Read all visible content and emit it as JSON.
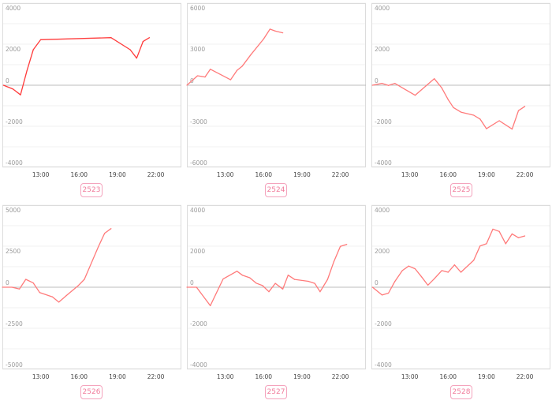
{
  "chart_data": [
    {
      "type": "line",
      "label": "2523",
      "color": "#ff3b3b",
      "ylim": [
        -4000,
        4000
      ],
      "yticks": [
        4000,
        2000,
        0,
        -2000,
        -4000
      ],
      "ygrid_step": 1000,
      "xlim": [
        "10:00",
        "24:00"
      ],
      "xticks": [
        "13:00",
        "16:00",
        "19:00",
        "22:00"
      ],
      "grid": true,
      "x": [
        "10:05",
        "10:50",
        "11:25",
        "11:55",
        "12:25",
        "13:00",
        "18:30",
        "20:00",
        "20:30",
        "21:00",
        "21:30"
      ],
      "values": [
        0,
        -190,
        -470,
        700,
        1730,
        2220,
        2320,
        1730,
        1320,
        2130,
        2320
      ]
    },
    {
      "type": "line",
      "label": "2524",
      "color": "#ff7a7a",
      "ylim": [
        -6000,
        6000
      ],
      "yticks": [
        6000,
        3000,
        0,
        -3000,
        -6000
      ],
      "ygrid_step": 1500,
      "xlim": [
        "10:00",
        "24:00"
      ],
      "xticks": [
        "13:00",
        "16:00",
        "19:00",
        "22:00"
      ],
      "grid": true,
      "x": [
        "10:00",
        "10:50",
        "11:25",
        "11:50",
        "13:25",
        "13:55",
        "14:20",
        "15:00",
        "16:00",
        "16:30",
        "16:55",
        "17:30"
      ],
      "values": [
        0,
        690,
        600,
        1170,
        400,
        1080,
        1400,
        2230,
        3380,
        4100,
        3960,
        3830
      ]
    },
    {
      "type": "line",
      "label": "2525",
      "color": "#ff7a7a",
      "ylim": [
        -4000,
        4000
      ],
      "yticks": [
        4000,
        2000,
        0,
        -2000,
        -4000
      ],
      "ygrid_step": 1000,
      "xlim": [
        "10:00",
        "24:00"
      ],
      "xticks": [
        "13:00",
        "16:00",
        "19:00",
        "22:00"
      ],
      "grid": true,
      "x": [
        "10:05",
        "10:50",
        "11:20",
        "11:50",
        "13:25",
        "14:55",
        "15:30",
        "16:00",
        "16:25",
        "17:00",
        "18:00",
        "18:30",
        "19:00",
        "20:00",
        "21:00",
        "21:30",
        "22:00"
      ],
      "values": [
        0,
        90,
        -10,
        90,
        -490,
        320,
        -130,
        -700,
        -1090,
        -1310,
        -1460,
        -1650,
        -2120,
        -1730,
        -2140,
        -1240,
        -1030
      ]
    },
    {
      "type": "line",
      "label": "2526",
      "color": "#ff7a7a",
      "ylim": [
        -5000,
        5000
      ],
      "yticks": [
        5000,
        2500,
        0,
        -2500,
        -5000
      ],
      "ygrid_step": 1250,
      "xlim": [
        "10:00",
        "24:00"
      ],
      "xticks": [
        "13:00",
        "16:00",
        "19:00",
        "22:00"
      ],
      "grid": true,
      "x": [
        "10:00",
        "10:45",
        "11:20",
        "11:50",
        "12:25",
        "12:55",
        "13:55",
        "14:25",
        "15:00",
        "15:55",
        "16:25",
        "17:30",
        "18:00",
        "18:30"
      ],
      "values": [
        0,
        0,
        -110,
        480,
        260,
        -320,
        -590,
        -910,
        -510,
        80,
        480,
        2450,
        3290,
        3570
      ]
    },
    {
      "type": "line",
      "label": "2527",
      "color": "#ff7a7a",
      "ylim": [
        -4000,
        4000
      ],
      "yticks": [
        4000,
        2000,
        0,
        -2000,
        -4000
      ],
      "ygrid_step": 1000,
      "xlim": [
        "10:00",
        "24:00"
      ],
      "xticks": [
        "13:00",
        "16:00",
        "19:00",
        "22:00"
      ],
      "grid": true,
      "x": [
        "10:00",
        "10:45",
        "11:50",
        "12:50",
        "13:55",
        "14:20",
        "14:55",
        "15:25",
        "15:55",
        "16:25",
        "16:55",
        "17:30",
        "17:55",
        "18:25",
        "19:30",
        "20:00",
        "20:25",
        "21:00",
        "21:30",
        "22:00",
        "22:30"
      ],
      "values": [
        0,
        0,
        -900,
        400,
        780,
        590,
        460,
        200,
        80,
        -220,
        190,
        -90,
        590,
        380,
        290,
        190,
        -220,
        380,
        1260,
        1990,
        2090
      ]
    },
    {
      "type": "line",
      "label": "2528",
      "color": "#ff7a7a",
      "ylim": [
        -4000,
        4000
      ],
      "yticks": [
        4000,
        2000,
        0,
        -2000,
        -4000
      ],
      "ygrid_step": 1000,
      "xlim": [
        "10:00",
        "24:00"
      ],
      "xticks": [
        "13:00",
        "16:00",
        "19:00",
        "22:00"
      ],
      "grid": true,
      "x": [
        "10:05",
        "10:50",
        "11:20",
        "11:50",
        "12:25",
        "12:55",
        "13:25",
        "13:55",
        "14:25",
        "14:55",
        "15:30",
        "16:00",
        "16:30",
        "17:00",
        "18:00",
        "18:30",
        "19:00",
        "19:30",
        "20:00",
        "20:30",
        "21:00",
        "21:30",
        "22:00"
      ],
      "values": [
        0,
        -380,
        -290,
        280,
        810,
        1030,
        900,
        510,
        100,
        410,
        810,
        730,
        1090,
        730,
        1310,
        2010,
        2120,
        2830,
        2720,
        2120,
        2600,
        2410,
        2500
      ]
    }
  ]
}
